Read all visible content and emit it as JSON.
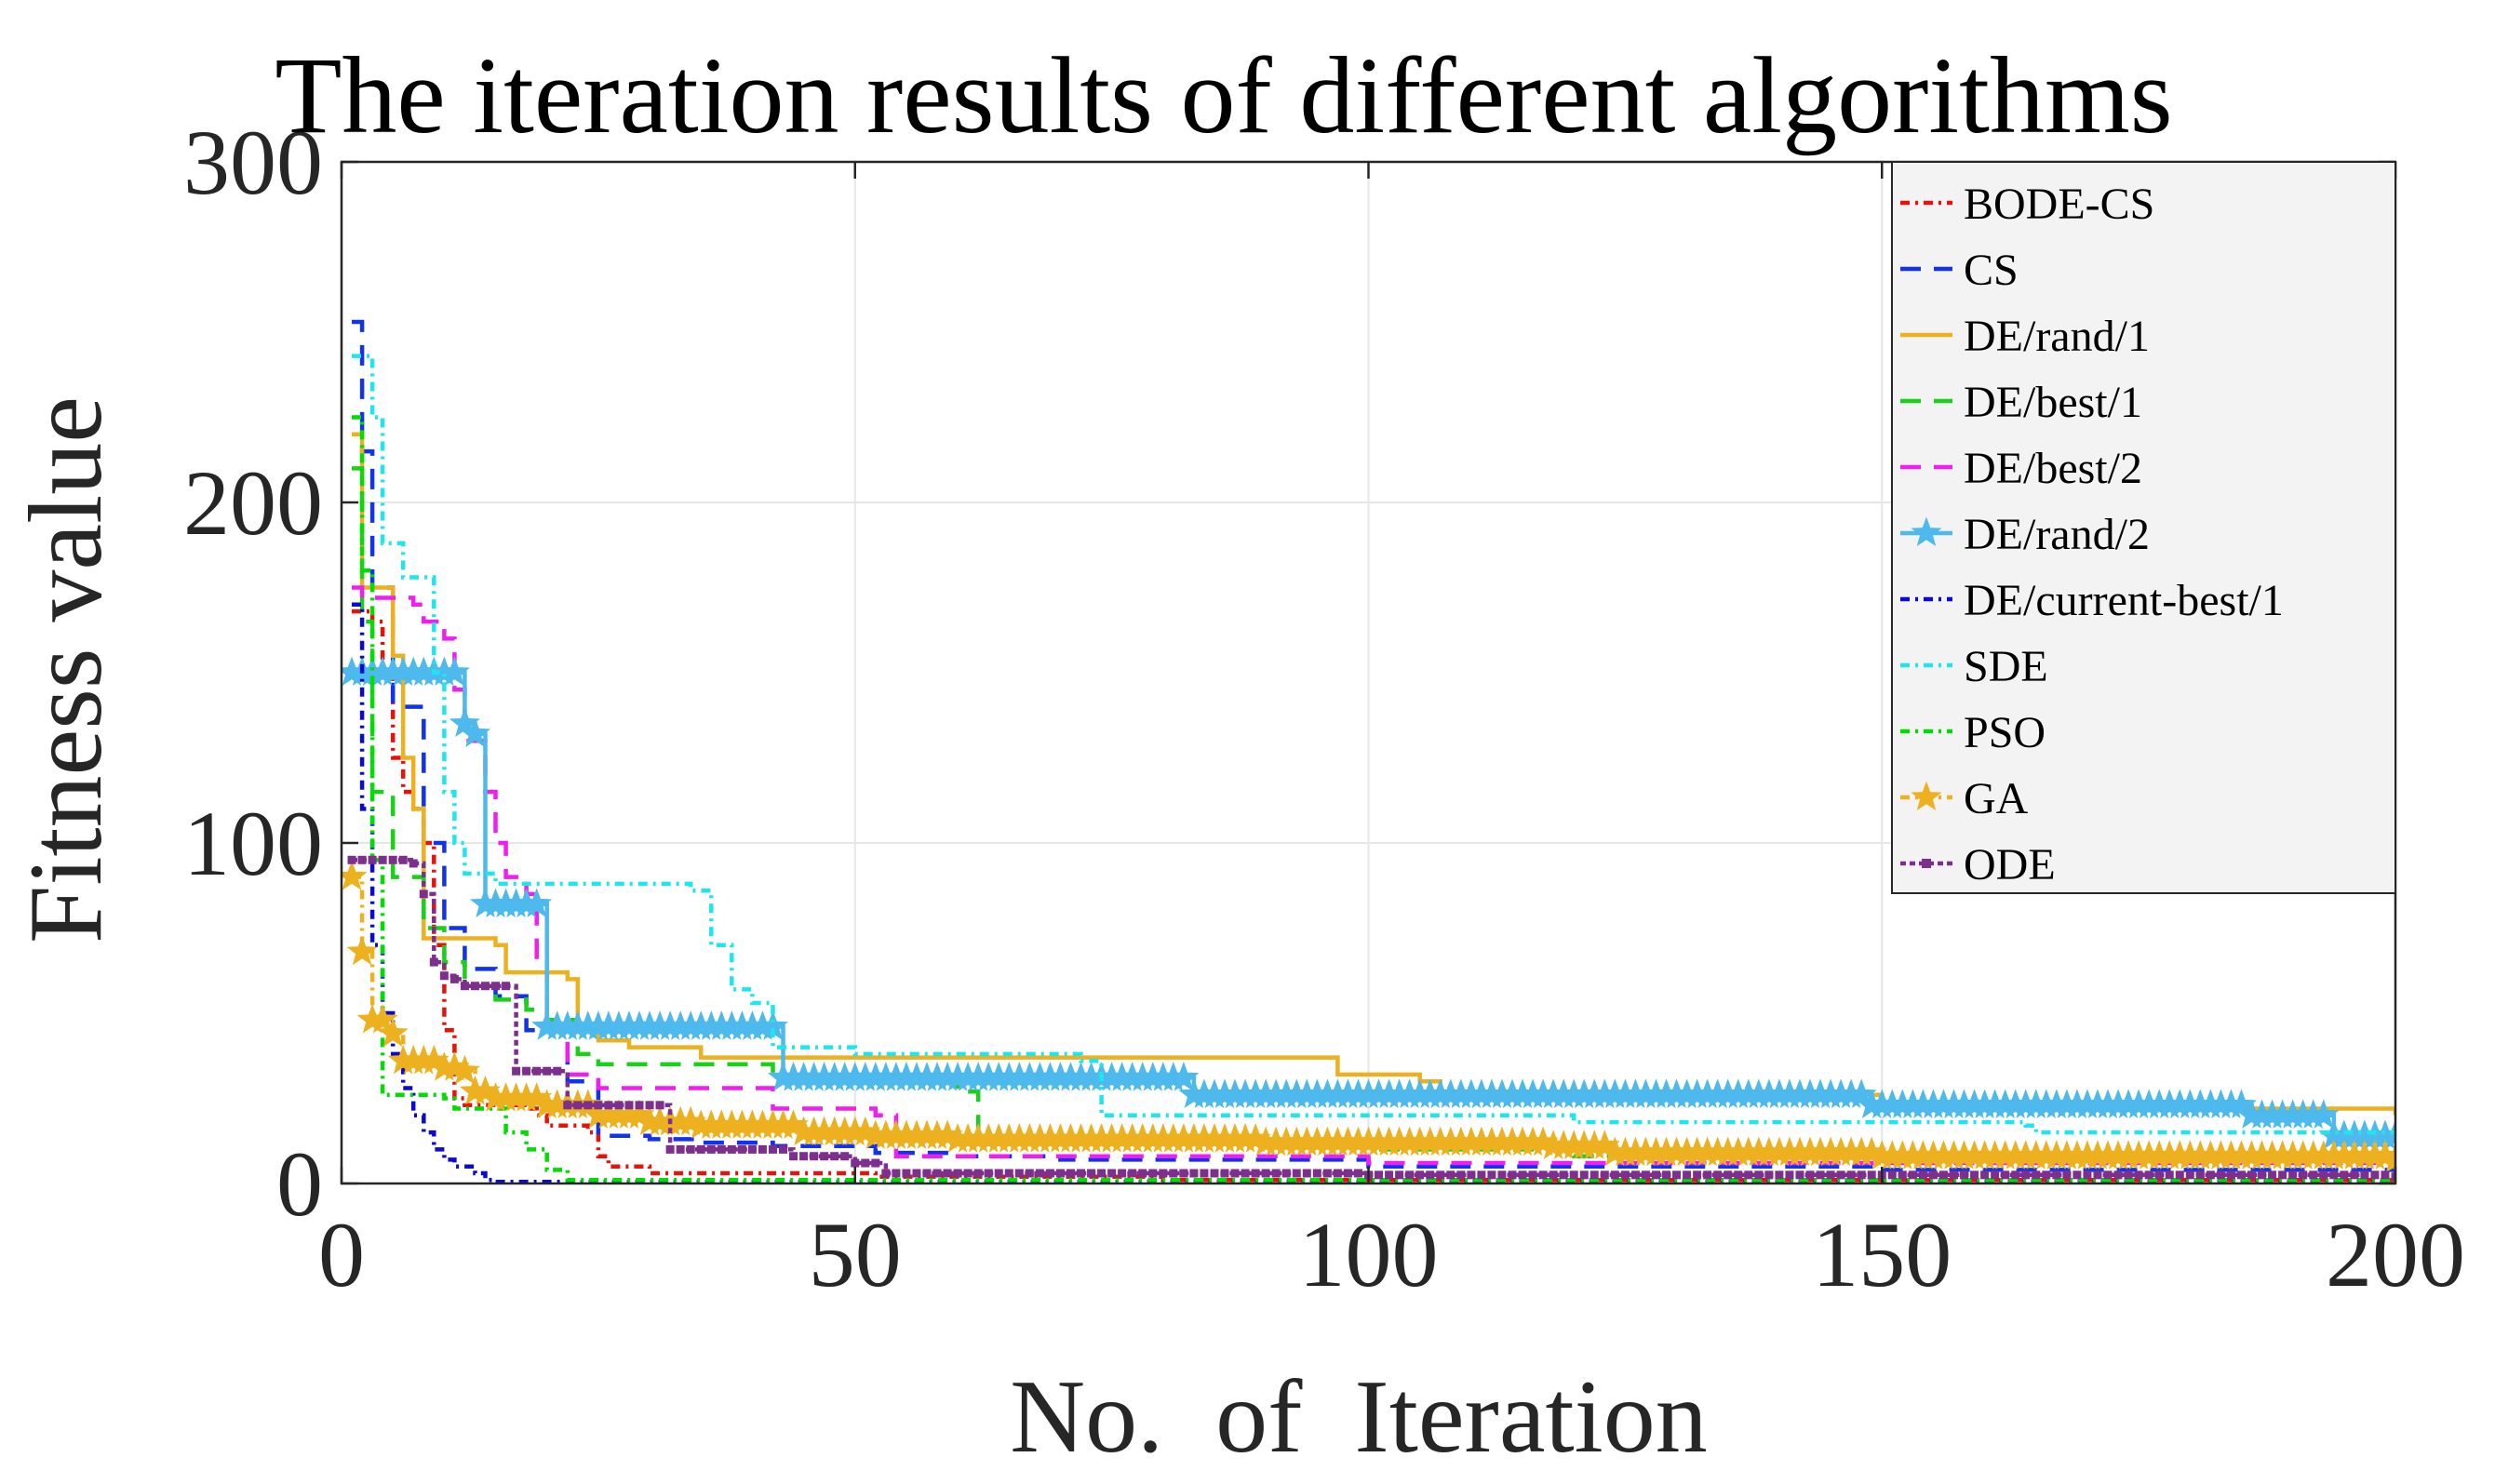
{
  "chart_data": {
    "type": "line",
    "title": "The iteration results of different algorithms",
    "xlabel": "No.  of  Iteration",
    "ylabel": "Fitness value",
    "xlim": [
      0,
      200
    ],
    "ylim": [
      0,
      300
    ],
    "xticks": [
      0,
      50,
      100,
      150,
      200
    ],
    "yticks": [
      0,
      100,
      200,
      300
    ],
    "grid": true,
    "legend_position": "top-right",
    "series": [
      {
        "name": "BODE-CS",
        "color": "#e8120c",
        "dash": "10,6,3,6",
        "marker": "none",
        "points": [
          [
            1,
            168
          ],
          [
            3,
            165
          ],
          [
            4,
            150
          ],
          [
            5,
            125
          ],
          [
            6,
            115
          ],
          [
            7,
            110
          ],
          [
            8,
            100
          ],
          [
            9,
            70
          ],
          [
            10,
            45
          ],
          [
            11,
            25
          ],
          [
            12,
            23
          ],
          [
            18,
            22
          ],
          [
            19,
            20
          ],
          [
            20,
            17
          ],
          [
            24,
            15
          ],
          [
            25,
            8
          ],
          [
            26,
            5
          ],
          [
            30,
            3
          ],
          [
            50,
            3
          ],
          [
            52,
            2
          ],
          [
            80,
            1
          ],
          [
            200,
            1
          ]
        ]
      },
      {
        "name": "CS",
        "color": "#1133ee",
        "dash": "22,14",
        "marker": "none",
        "points": [
          [
            1,
            253
          ],
          [
            2,
            215
          ],
          [
            3,
            175
          ],
          [
            5,
            140
          ],
          [
            8,
            100
          ],
          [
            10,
            75
          ],
          [
            12,
            63
          ],
          [
            15,
            55
          ],
          [
            18,
            45
          ],
          [
            22,
            30
          ],
          [
            25,
            14
          ],
          [
            30,
            13
          ],
          [
            35,
            12
          ],
          [
            42,
            11
          ],
          [
            52,
            9
          ],
          [
            60,
            8
          ],
          [
            70,
            7
          ],
          [
            100,
            5
          ],
          [
            150,
            4
          ],
          [
            200,
            3
          ]
        ]
      },
      {
        "name": "DE/rand/1",
        "color": "#edb120",
        "dash": "",
        "marker": "none",
        "points": [
          [
            1,
            220
          ],
          [
            2,
            175
          ],
          [
            5,
            155
          ],
          [
            6,
            125
          ],
          [
            7,
            110
          ],
          [
            8,
            72
          ],
          [
            15,
            70
          ],
          [
            16,
            62
          ],
          [
            22,
            60
          ],
          [
            23,
            45
          ],
          [
            25,
            42
          ],
          [
            28,
            40
          ],
          [
            35,
            37
          ],
          [
            96,
            37
          ],
          [
            97,
            32
          ],
          [
            105,
            30
          ],
          [
            107,
            27
          ],
          [
            130,
            26
          ],
          [
            150,
            22
          ],
          [
            200,
            20
          ]
        ]
      },
      {
        "name": "DE/best/1",
        "color": "#1ad11a",
        "dash": "22,14",
        "marker": "none",
        "points": [
          [
            1,
            210
          ],
          [
            2,
            165
          ],
          [
            3,
            115
          ],
          [
            5,
            90
          ],
          [
            8,
            75
          ],
          [
            10,
            65
          ],
          [
            12,
            58
          ],
          [
            15,
            54
          ],
          [
            18,
            51
          ],
          [
            20,
            48
          ],
          [
            23,
            38
          ],
          [
            25,
            35
          ],
          [
            40,
            35
          ],
          [
            42,
            30
          ],
          [
            58,
            30
          ],
          [
            60,
            27
          ],
          [
            62,
            12
          ],
          [
            100,
            10
          ],
          [
            120,
            8
          ],
          [
            200,
            4
          ]
        ]
      },
      {
        "name": "DE/best/2",
        "color": "#f01ef0",
        "dash": "22,14",
        "marker": "none",
        "points": [
          [
            1,
            175
          ],
          [
            2,
            172
          ],
          [
            7,
            170
          ],
          [
            8,
            165
          ],
          [
            10,
            160
          ],
          [
            11,
            145
          ],
          [
            12,
            130
          ],
          [
            14,
            115
          ],
          [
            15,
            100
          ],
          [
            16,
            90
          ],
          [
            18,
            85
          ],
          [
            19,
            65
          ],
          [
            20,
            45
          ],
          [
            22,
            32
          ],
          [
            25,
            28
          ],
          [
            40,
            28
          ],
          [
            42,
            22
          ],
          [
            52,
            20
          ],
          [
            54,
            8
          ],
          [
            100,
            6
          ],
          [
            200,
            4
          ]
        ]
      },
      {
        "name": "DE/rand/2",
        "color": "#4db9ed",
        "dash": "",
        "marker": "star",
        "points": [
          [
            1,
            150
          ],
          [
            11,
            150
          ],
          [
            12,
            135
          ],
          [
            13,
            132
          ],
          [
            14,
            82
          ],
          [
            19,
            82
          ],
          [
            20,
            46
          ],
          [
            42,
            46
          ],
          [
            43,
            31
          ],
          [
            82,
            31
          ],
          [
            83,
            26
          ],
          [
            148,
            26
          ],
          [
            149,
            23
          ],
          [
            185,
            23
          ],
          [
            186,
            20
          ],
          [
            193,
            20
          ],
          [
            194,
            14
          ],
          [
            200,
            14
          ]
        ]
      },
      {
        "name": "DE/current-best/1",
        "color": "#0a0ad2",
        "dash": "10,6,3,6",
        "marker": "none",
        "points": [
          [
            1,
            170
          ],
          [
            2,
            110
          ],
          [
            3,
            70
          ],
          [
            4,
            50
          ],
          [
            5,
            38
          ],
          [
            6,
            28
          ],
          [
            7,
            20
          ],
          [
            8,
            15
          ],
          [
            9,
            10
          ],
          [
            10,
            7
          ],
          [
            11,
            5
          ],
          [
            13,
            3
          ],
          [
            14,
            1
          ],
          [
            15,
            0.5
          ],
          [
            200,
            0.5
          ]
        ]
      },
      {
        "name": "SDE",
        "color": "#1ee6ee",
        "dash": "10,6,3,6",
        "marker": "none",
        "points": [
          [
            1,
            243
          ],
          [
            3,
            225
          ],
          [
            4,
            188
          ],
          [
            6,
            178
          ],
          [
            9,
            150
          ],
          [
            10,
            115
          ],
          [
            11,
            100
          ],
          [
            12,
            91
          ],
          [
            15,
            88
          ],
          [
            34,
            86
          ],
          [
            36,
            70
          ],
          [
            38,
            57
          ],
          [
            40,
            53
          ],
          [
            42,
            40
          ],
          [
            50,
            38
          ],
          [
            72,
            36
          ],
          [
            74,
            20
          ],
          [
            110,
            20
          ],
          [
            120,
            18
          ],
          [
            164,
            17
          ],
          [
            165,
            15
          ],
          [
            200,
            15
          ]
        ]
      },
      {
        "name": "PSO",
        "color": "#00dd00",
        "dash": "10,6,3,6",
        "marker": "none",
        "points": [
          [
            1,
            225
          ],
          [
            2,
            180
          ],
          [
            3,
            95
          ],
          [
            4,
            26
          ],
          [
            10,
            25
          ],
          [
            11,
            22
          ],
          [
            15,
            22
          ],
          [
            16,
            15
          ],
          [
            18,
            10
          ],
          [
            20,
            4
          ],
          [
            22,
            1
          ],
          [
            200,
            0.5
          ]
        ]
      },
      {
        "name": "GA",
        "color": "#edb120",
        "dash": "10,6,3,6",
        "marker": "star",
        "points": [
          [
            1,
            90
          ],
          [
            2,
            68
          ],
          [
            3,
            48
          ],
          [
            5,
            44
          ],
          [
            6,
            36
          ],
          [
            10,
            34
          ],
          [
            12,
            33
          ],
          [
            13,
            27
          ],
          [
            15,
            25
          ],
          [
            20,
            23
          ],
          [
            25,
            20
          ],
          [
            30,
            18
          ],
          [
            35,
            17
          ],
          [
            40,
            17
          ],
          [
            45,
            15
          ],
          [
            52,
            14
          ],
          [
            60,
            13
          ],
          [
            80,
            13
          ],
          [
            90,
            12
          ],
          [
            110,
            12
          ],
          [
            118,
            11
          ],
          [
            121,
            11
          ],
          [
            124,
            9
          ],
          [
            150,
            8
          ],
          [
            200,
            7
          ]
        ]
      },
      {
        "name": "ODE",
        "color": "#7e2f8e",
        "dash": "6,4",
        "marker": "square",
        "points": [
          [
            1,
            95
          ],
          [
            5,
            95
          ],
          [
            7,
            94
          ],
          [
            8,
            85
          ],
          [
            9,
            65
          ],
          [
            10,
            61
          ],
          [
            11,
            60
          ],
          [
            12,
            58
          ],
          [
            16,
            58
          ],
          [
            17,
            33
          ],
          [
            21,
            33
          ],
          [
            22,
            23
          ],
          [
            31,
            23
          ],
          [
            32,
            10
          ],
          [
            43,
            10
          ],
          [
            44,
            8
          ],
          [
            50,
            6
          ],
          [
            53,
            3
          ],
          [
            100,
            2.5
          ],
          [
            200,
            2
          ]
        ]
      }
    ]
  }
}
